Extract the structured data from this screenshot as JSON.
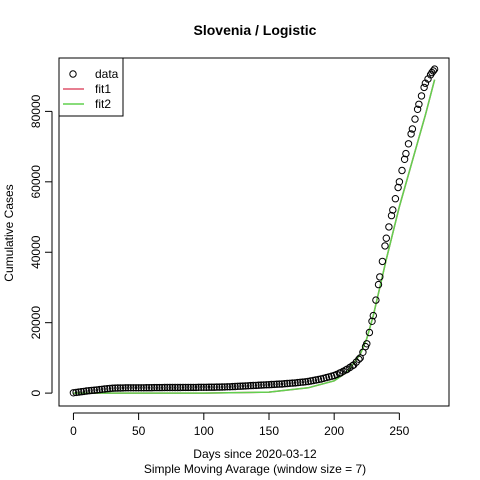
{
  "chart_data": {
    "type": "line",
    "title": "Slovenia / Logistic",
    "xlabel": "Days since 2020-03-12",
    "xlabel2": "Simple Moving Avarage (window size = 7)",
    "ylabel": "Cumulative Cases",
    "xlim": [
      0,
      277
    ],
    "ylim": [
      0,
      91500
    ],
    "x_ticks": [
      0,
      50,
      100,
      150,
      200,
      250
    ],
    "y_ticks": [
      0,
      20000,
      40000,
      60000,
      80000
    ],
    "legend_position": "top-left",
    "grid": false,
    "colors": {
      "data": "#000000",
      "fit1": "#DF536B",
      "fit2": "#61D04F"
    },
    "series": [
      {
        "name": "data",
        "style": "points",
        "x": [
          0,
          10,
          20,
          30,
          40,
          50,
          60,
          70,
          80,
          90,
          100,
          110,
          120,
          130,
          140,
          150,
          160,
          170,
          180,
          190,
          200,
          205,
          210,
          215,
          220,
          225,
          230,
          235,
          240,
          245,
          250,
          255,
          260,
          265,
          270,
          275,
          277
        ],
        "y": [
          100,
          600,
          1000,
          1400,
          1500,
          1500,
          1550,
          1580,
          1600,
          1620,
          1650,
          1700,
          1800,
          2000,
          2200,
          2400,
          2600,
          2900,
          3300,
          4000,
          5000,
          5800,
          6800,
          8000,
          10000,
          14000,
          22000,
          33000,
          44000,
          52000,
          60000,
          68000,
          75000,
          82000,
          88000,
          91000,
          92000
        ]
      },
      {
        "name": "fit1",
        "style": "line",
        "x": [
          0,
          50,
          100,
          150,
          180,
          200,
          210,
          220,
          225,
          230,
          235,
          240,
          250,
          260,
          270,
          277
        ],
        "y": [
          0,
          0,
          0,
          300,
          1500,
          3500,
          6000,
          11000,
          15500,
          22000,
          30000,
          38000,
          53000,
          66000,
          79000,
          89000
        ]
      },
      {
        "name": "fit2",
        "style": "line",
        "x": [
          0,
          50,
          100,
          150,
          180,
          200,
          210,
          220,
          225,
          230,
          235,
          240,
          250,
          260,
          270,
          277
        ],
        "y": [
          0,
          0,
          0,
          300,
          1500,
          3500,
          6000,
          11000,
          15500,
          22000,
          30000,
          38000,
          53000,
          66000,
          79000,
          89000
        ]
      }
    ]
  }
}
